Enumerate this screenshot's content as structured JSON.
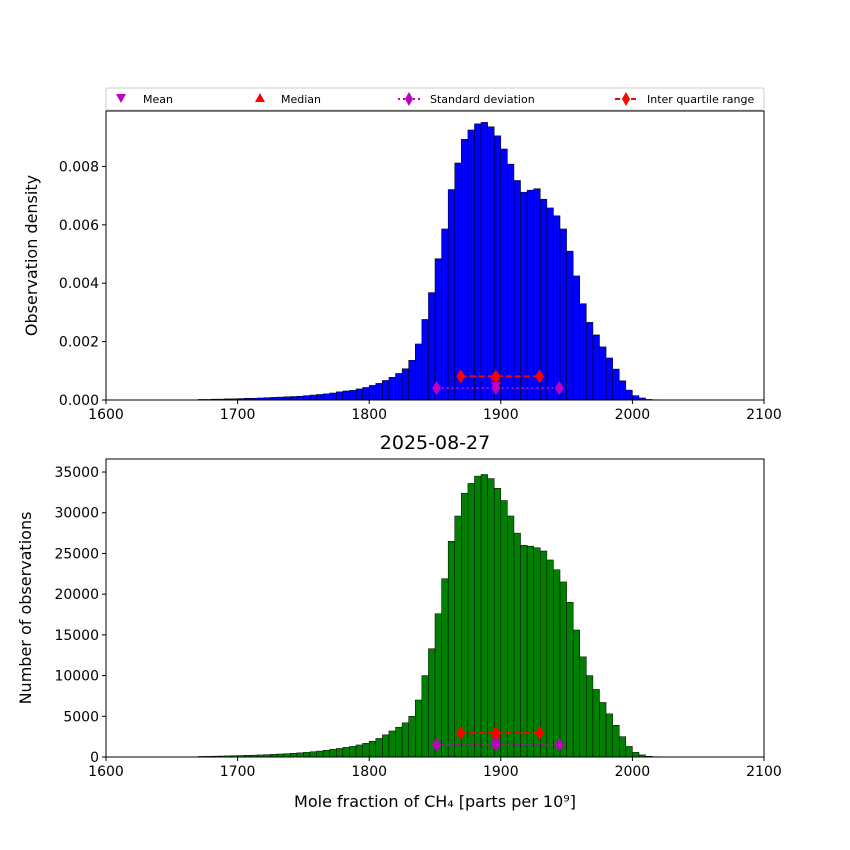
{
  "legend": {
    "placement": "top",
    "entries": [
      {
        "label": "Mean",
        "marker": "triangle-down",
        "color": "#bf00bf"
      },
      {
        "label": "Median",
        "marker": "triangle-up",
        "color": "#ff0000"
      },
      {
        "label": "Standard deviation",
        "marker": "diamond",
        "line": "dotted",
        "color": "#bf00bf"
      },
      {
        "label": "Inter quartile range",
        "marker": "diamond",
        "line": "dashed",
        "color": "#ff0000"
      }
    ]
  },
  "chart_data": [
    {
      "type": "bar",
      "title": "",
      "xlabel": "",
      "ylabel": "Observation density",
      "xlim": [
        1600,
        2100
      ],
      "ylim": [
        0,
        0.0099
      ],
      "xticks": [
        "1600",
        "1700",
        "1800",
        "1900",
        "2000",
        "2100"
      ],
      "yticks": [
        "0.000",
        "0.002",
        "0.004",
        "0.006",
        "0.008"
      ],
      "ytick_values": [
        0,
        0.002,
        0.004,
        0.006,
        0.008
      ],
      "bar_color": "#0000ff",
      "bin_start": 1670,
      "bin_width": 5,
      "values": [
        2e-05,
        2e-05,
        3e-05,
        3e-05,
        4e-05,
        4e-05,
        5e-05,
        6e-05,
        6e-05,
        7e-05,
        8e-05,
        9e-05,
        0.0001,
        0.00011,
        0.00012,
        0.00013,
        0.00015,
        0.00017,
        0.00019,
        0.00021,
        0.00024,
        0.00028,
        0.00031,
        0.00033,
        0.00038,
        0.00043,
        0.0005,
        0.00057,
        0.00067,
        0.00078,
        0.00091,
        0.00107,
        0.00136,
        0.00192,
        0.00276,
        0.00368,
        0.00484,
        0.00586,
        0.00721,
        0.00812,
        0.00893,
        0.00925,
        0.00946,
        0.00951,
        0.00936,
        0.00905,
        0.0086,
        0.00808,
        0.00752,
        0.00712,
        0.00719,
        0.00724,
        0.00688,
        0.00658,
        0.00631,
        0.00586,
        0.0051,
        0.00425,
        0.0033,
        0.00266,
        0.00223,
        0.00182,
        0.00144,
        0.00106,
        0.00066,
        0.00034,
        0.00015,
        7e-05,
        2e-05,
        1e-05,
        4e-06
      ],
      "stats": {
        "mean": {
          "x": 1896.2,
          "y": 0.00045
        },
        "median": {
          "x": 1896.2,
          "y": 0.00084
        },
        "std": {
          "low": 1851.2,
          "center": 1896.2,
          "high": 1944.5,
          "y": 0.00041
        },
        "iqr": {
          "low": 1869.6,
          "center": 1896.2,
          "high": 1929.5,
          "y": 0.00081
        }
      }
    },
    {
      "type": "bar",
      "title": "2025-08-27",
      "xlabel": "Mole fraction of CH₄ [parts per 10⁹]",
      "ylabel": "Number of observations",
      "xlim": [
        1600,
        2100
      ],
      "ylim": [
        0,
        36600
      ],
      "xticks": [
        "1600",
        "1700",
        "1800",
        "1900",
        "2000",
        "2100"
      ],
      "yticks": [
        "0",
        "5000",
        "10000",
        "15000",
        "20000",
        "25000",
        "30000",
        "35000"
      ],
      "ytick_values": [
        0,
        5000,
        10000,
        15000,
        20000,
        25000,
        30000,
        35000
      ],
      "bar_color": "#008000",
      "bin_start": 1670,
      "bin_width": 5,
      "values": [
        70,
        80,
        100,
        120,
        140,
        160,
        180,
        210,
        230,
        260,
        290,
        330,
        370,
        410,
        460,
        510,
        570,
        650,
        730,
        830,
        940,
        1050,
        1180,
        1300,
        1480,
        1680,
        1940,
        2280,
        2720,
        3200,
        3650,
        4200,
        5000,
        7000,
        10000,
        13300,
        17600,
        21900,
        26500,
        29600,
        32400,
        33600,
        34500,
        34700,
        34200,
        33000,
        31500,
        29600,
        27500,
        26000,
        25900,
        25700,
        25300,
        24200,
        23000,
        21500,
        19000,
        15600,
        12300,
        10000,
        8300,
        6700,
        5300,
        3900,
        2500,
        1300,
        570,
        260,
        90,
        40,
        15
      ],
      "stats": {
        "mean": {
          "x": 1896.2,
          "y": 1650
        },
        "median": {
          "x": 1896.2,
          "y": 3050
        },
        "std": {
          "low": 1851.2,
          "center": 1896.2,
          "high": 1944.5,
          "y": 1500
        },
        "iqr": {
          "low": 1869.6,
          "center": 1896.2,
          "high": 1929.5,
          "y": 2950
        }
      }
    }
  ]
}
